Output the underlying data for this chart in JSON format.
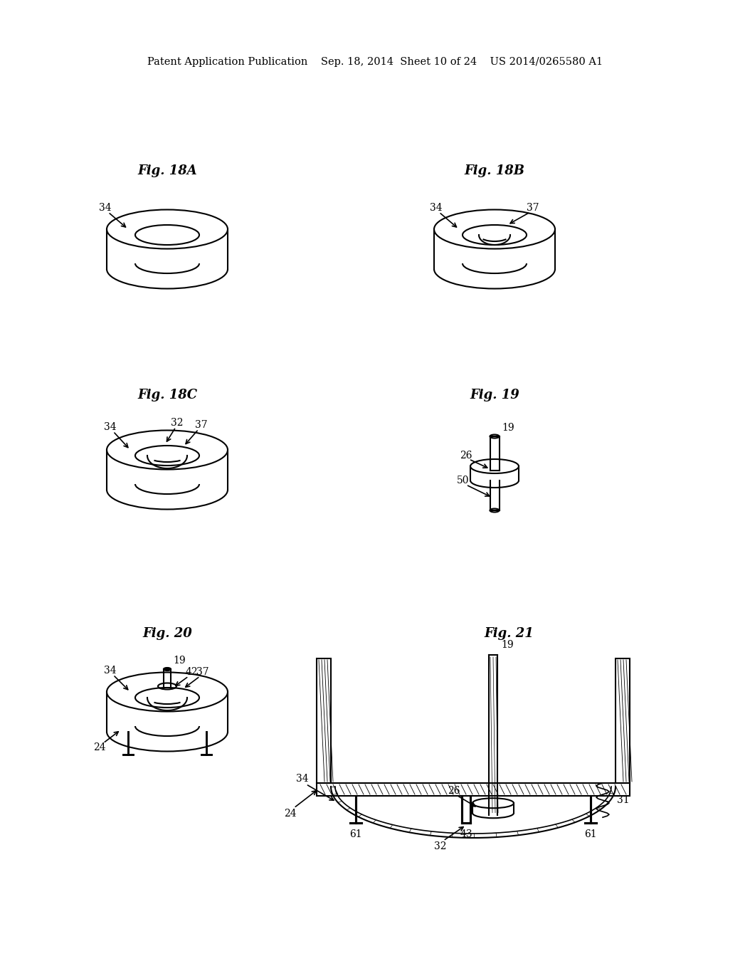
{
  "bg_color": "#ffffff",
  "header_text": "Patent Application Publication    Sep. 18, 2014  Sheet 10 of 24    US 2014/0265580 A1",
  "figures": [
    {
      "label": "Fig. 18A",
      "col": 0,
      "row": 0
    },
    {
      "label": "Fig. 18B",
      "col": 1,
      "row": 0
    },
    {
      "label": "Fig. 18C",
      "col": 0,
      "row": 1
    },
    {
      "label": "Fig. 19",
      "col": 1,
      "row": 1
    },
    {
      "label": "Fig. 20",
      "col": 0,
      "row": 2
    },
    {
      "label": "Fig. 21",
      "col": 1,
      "row": 2
    }
  ]
}
